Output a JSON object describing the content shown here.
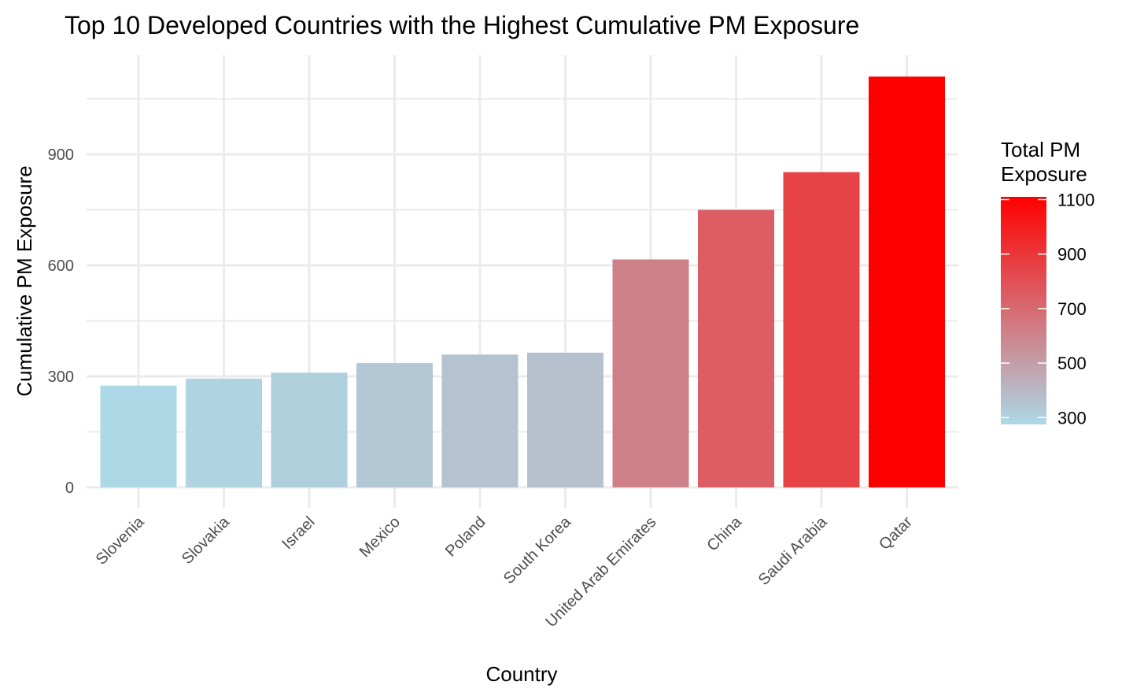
{
  "chart_data": {
    "type": "bar",
    "title": "Top 10 Developed Countries with the Highest Cumulative PM Exposure",
    "xlabel": "Country",
    "ylabel": "Cumulative PM Exposure",
    "categories": [
      "Slovenia",
      "Slovakia",
      "Israel",
      "Mexico",
      "Poland",
      "South Korea",
      "United Arab Emirates",
      "China",
      "Saudi Arabia",
      "Qatar"
    ],
    "values": [
      275,
      294,
      310,
      336,
      359,
      364,
      616,
      750,
      852,
      1110
    ],
    "ylim": [
      0,
      1160
    ],
    "yticks": [
      0,
      300,
      600,
      900
    ],
    "grid": true,
    "legend": {
      "title_line1": "Total PM",
      "title_line2": "Exposure",
      "placement": "right",
      "range": [
        275,
        1110
      ],
      "ticks": [
        300,
        500,
        700,
        900,
        1100
      ],
      "color_low": "#add8e6",
      "color_high": "#ff0000"
    }
  }
}
